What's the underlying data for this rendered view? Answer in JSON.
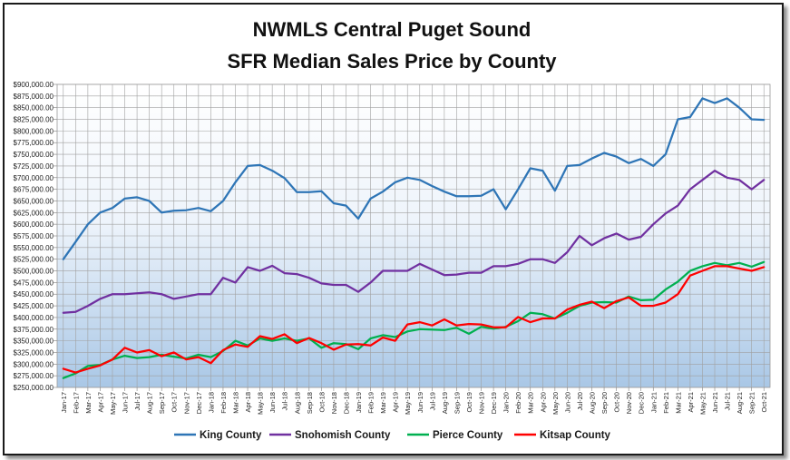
{
  "chart_data": {
    "type": "line",
    "title_lines": [
      "NWMLS Central Puget Sound",
      "SFR Median Sales Price by County"
    ],
    "xlabel": "",
    "ylabel": "",
    "ylim": [
      250000,
      900000
    ],
    "ytick_step": 25000,
    "ytick_labels": [
      "$250,000.00",
      "$275,000.00",
      "$300,000.00",
      "$325,000.00",
      "$350,000.00",
      "$375,000.00",
      "$400,000.00",
      "$425,000.00",
      "$450,000.00",
      "$475,000.00",
      "$500,000.00",
      "$525,000.00",
      "$550,000.00",
      "$575,000.00",
      "$600,000.00",
      "$625,000.00",
      "$650,000.00",
      "$675,000.00",
      "$700,000.00",
      "$725,000.00",
      "$750,000.00",
      "$775,000.00",
      "$800,000.00",
      "$825,000.00",
      "$850,000.00",
      "$875,000.00",
      "$900,000.00"
    ],
    "grid": true,
    "legend_position": "bottom",
    "categories": [
      "Jan-17",
      "Feb-17",
      "Mar-17",
      "Apr-17",
      "May-17",
      "Jun-17",
      "Jul-17",
      "Aug-17",
      "Sep-17",
      "Oct-17",
      "Nov-17",
      "Dec-17",
      "Jan-18",
      "Feb-18",
      "Mar-18",
      "Apr-18",
      "May-18",
      "Jun-18",
      "Jul-18",
      "Aug-18",
      "Sep-18",
      "Oct-18",
      "Nov-18",
      "Dec-18",
      "Jan-19",
      "Feb-19",
      "Mar-19",
      "Apr-19",
      "May-19",
      "Jun-19",
      "Jul-19",
      "Aug-19",
      "Sep-19",
      "Oct-19",
      "Nov-19",
      "Dec-19",
      "Jan-20",
      "Feb-20",
      "Mar-20",
      "Apr-20",
      "May-20",
      "Jun-20",
      "Jul-20",
      "Aug-20",
      "Sep-20",
      "Oct-20",
      "Nov-20",
      "Dec-20",
      "Jan-21",
      "Feb-21",
      "Mar-21",
      "Apr-21",
      "May-21",
      "Jun-21",
      "Jul-21",
      "Aug-21",
      "Sep-21",
      "Oct-21"
    ],
    "series": [
      {
        "name": "King County",
        "color": "#2e75b6",
        "values": [
          525000,
          562000,
          600000,
          625000,
          635000,
          655000,
          658000,
          650000,
          625000,
          629000,
          630000,
          635000,
          628000,
          650000,
          690000,
          725000,
          727000,
          715000,
          699000,
          669000,
          669000,
          671000,
          645000,
          640000,
          612000,
          655000,
          670000,
          690000,
          700000,
          695000,
          682000,
          670000,
          660000,
          660000,
          661000,
          675000,
          632000,
          675000,
          720000,
          715000,
          672000,
          725000,
          727000,
          741000,
          753000,
          745000,
          731000,
          740000,
          725000,
          750000,
          825000,
          830000,
          870000,
          860000,
          870000,
          850000,
          825000,
          824000
        ]
      },
      {
        "name": "Snohomish County",
        "color": "#7030a0",
        "values": [
          410000,
          412000,
          425000,
          440000,
          450000,
          450000,
          452000,
          454000,
          450000,
          440000,
          445000,
          450000,
          450000,
          485000,
          475000,
          508000,
          500000,
          511000,
          495000,
          493000,
          485000,
          473000,
          470000,
          470000,
          455000,
          475000,
          500000,
          500000,
          500000,
          515000,
          503000,
          491000,
          492000,
          496000,
          496000,
          510000,
          510000,
          515000,
          525000,
          525000,
          517000,
          540000,
          575000,
          555000,
          570000,
          580000,
          567000,
          573000,
          600000,
          623000,
          640000,
          675000,
          695000,
          715000,
          700000,
          695000,
          675000,
          695000
        ]
      },
      {
        "name": "Pierce County",
        "color": "#00b050",
        "values": [
          270000,
          280000,
          296000,
          298000,
          310000,
          318000,
          313000,
          315000,
          320000,
          316000,
          312000,
          320000,
          315000,
          328000,
          350000,
          340000,
          355000,
          350000,
          355000,
          350000,
          355000,
          335000,
          345000,
          343000,
          332000,
          355000,
          362000,
          358000,
          370000,
          375000,
          374000,
          373000,
          378000,
          365000,
          380000,
          376000,
          380000,
          392000,
          410000,
          407000,
          398000,
          410000,
          425000,
          432000,
          433000,
          432000,
          445000,
          437000,
          438000,
          460000,
          477000,
          500000,
          510000,
          517000,
          512000,
          517000,
          509000,
          519000
        ]
      },
      {
        "name": "Kitsap County",
        "color": "#ff0000",
        "values": [
          290000,
          282000,
          290000,
          297000,
          310000,
          335000,
          325000,
          330000,
          317000,
          325000,
          310000,
          315000,
          302000,
          330000,
          342000,
          337000,
          360000,
          354000,
          364000,
          345000,
          356000,
          345000,
          331000,
          342000,
          343000,
          340000,
          357000,
          350000,
          385000,
          390000,
          383000,
          396000,
          383000,
          386000,
          385000,
          379000,
          379000,
          401000,
          390000,
          398000,
          398000,
          417000,
          427000,
          434000,
          420000,
          435000,
          443000,
          425000,
          425000,
          432000,
          450000,
          490000,
          500000,
          510000,
          510000,
          505000,
          500000,
          508000
        ]
      }
    ]
  }
}
